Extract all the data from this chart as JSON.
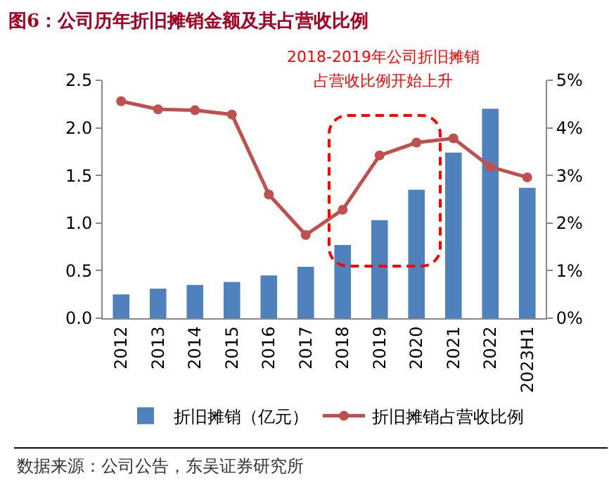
{
  "chart_data": {
    "type": "bar",
    "title": "图6：公司历年折旧摊销金额及其占营收比例",
    "categories": [
      "2012",
      "2013",
      "2014",
      "2015",
      "2016",
      "2017",
      "2018",
      "2019",
      "2020",
      "2021",
      "2022",
      "2023H1"
    ],
    "series": [
      {
        "name": "折旧摊销（亿元）",
        "color": "#4f81bd",
        "values": [
          0.25,
          0.31,
          0.35,
          0.38,
          0.45,
          0.54,
          0.77,
          1.03,
          1.35,
          1.74,
          2.2,
          1.37
        ]
      },
      {
        "name": "折旧摊销占营收比例",
        "type": "line",
        "axis": "y2",
        "color": "#c0504d",
        "values": [
          4.56,
          4.39,
          4.37,
          4.28,
          2.6,
          1.75,
          2.28,
          3.42,
          3.69,
          3.78,
          3.18,
          2.96
        ]
      }
    ],
    "ylim": [
      0,
      2.5
    ],
    "yticks": [
      {
        "value": 0,
        "label": "0.0"
      },
      0.5,
      {
        "value": 1,
        "label": "1.0"
      },
      1.5,
      {
        "value": 2,
        "label": "2.0"
      },
      2.5
    ],
    "y2lim": [
      0,
      5
    ],
    "y2ticks": [
      {
        "value": 0,
        "label": "0%"
      },
      {
        "value": 1,
        "label": "1%"
      },
      {
        "value": 2,
        "label": "2%"
      },
      {
        "value": 3,
        "label": "3%"
      },
      {
        "value": 4,
        "label": "4%"
      },
      {
        "value": 5,
        "label": "5%"
      }
    ],
    "marker": "circle",
    "line_style": "solid",
    "legend": "bottom",
    "grid": false,
    "annotations": [
      "2018-2019年公司折旧摊销",
      "占营收比例开始上升",
      "数据来源：公司公告，东吴证券研究所"
    ]
  }
}
